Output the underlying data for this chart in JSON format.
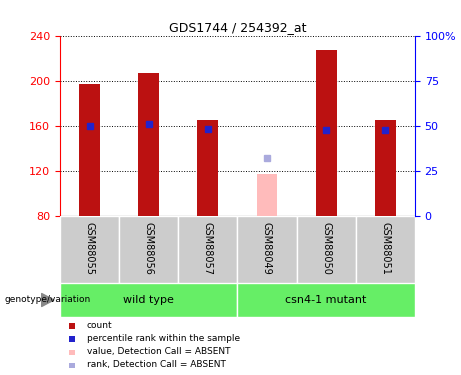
{
  "title": "GDS1744 / 254392_at",
  "samples": [
    "GSM88055",
    "GSM88056",
    "GSM88057",
    "GSM88049",
    "GSM88050",
    "GSM88051"
  ],
  "ylim_left": [
    80,
    240
  ],
  "ylim_right": [
    0,
    100
  ],
  "yticks_left": [
    80,
    120,
    160,
    200,
    240
  ],
  "yticks_right": [
    0,
    25,
    50,
    75,
    100
  ],
  "count_values": [
    197,
    207,
    165,
    null,
    227,
    165
  ],
  "absent_values": [
    null,
    null,
    null,
    117,
    null,
    null
  ],
  "rank_values": [
    160,
    161,
    157,
    null,
    156,
    156
  ],
  "absent_rank_values": [
    null,
    null,
    null,
    131,
    null,
    null
  ],
  "bar_baseline": 80,
  "bar_color_present": "#bb1111",
  "bar_color_absent": "#ffbbbb",
  "rank_color_present": "#2222cc",
  "rank_color_absent": "#aaaadd",
  "bg_color_sample": "#cccccc",
  "bg_color_group": "#66ee66",
  "bar_width": 0.35,
  "rank_marker_size": 5,
  "legend_items": [
    [
      "#bb1111",
      "count"
    ],
    [
      "#2222cc",
      "percentile rank within the sample"
    ],
    [
      "#ffbbbb",
      "value, Detection Call = ABSENT"
    ],
    [
      "#aaaadd",
      "rank, Detection Call = ABSENT"
    ]
  ]
}
